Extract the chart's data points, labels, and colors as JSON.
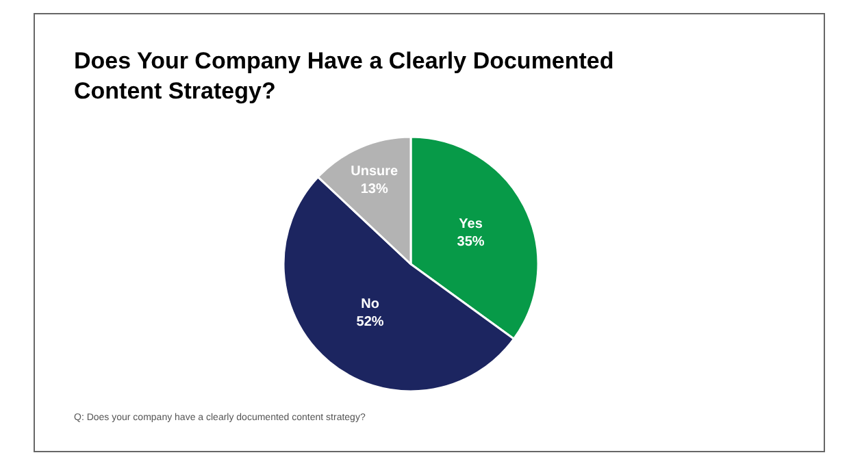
{
  "chart_data": {
    "type": "pie",
    "title": "Does Your Company Have a Clearly Documented Content Strategy?",
    "categories": [
      "Yes",
      "No",
      "Unsure"
    ],
    "values": [
      35,
      52,
      13
    ],
    "colors": [
      "#079a48",
      "#1c2560",
      "#b3b3b3"
    ],
    "value_labels": [
      "35%",
      "52%",
      "13%"
    ],
    "legend": false,
    "annotations": [
      "Q: Does your company have a clearly documented content strategy?"
    ]
  }
}
